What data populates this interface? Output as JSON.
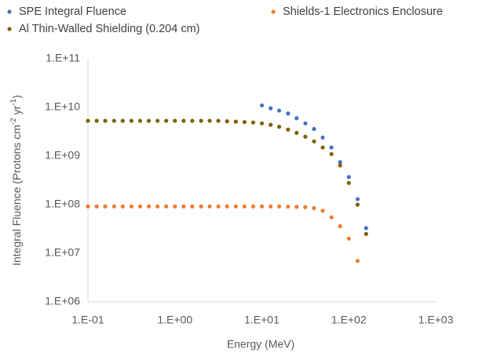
{
  "chart_data": {
    "type": "scatter",
    "x_label": "Energy (MeV)",
    "y_label": {
      "text": "Integral Fluence (Protons cm",
      "sup1": "-2",
      "mid": " yr",
      "sup2": "-1",
      "end": ")"
    },
    "log_x": true,
    "log_y": true,
    "grid": false,
    "legend": "top",
    "xlim": [
      0.1,
      1000
    ],
    "ylim": [
      1000000,
      100000000000
    ],
    "xticks": [
      {
        "value": 0.1,
        "label": "1.E-01"
      },
      {
        "value": 1,
        "label": "1.E+00"
      },
      {
        "value": 10,
        "label": "1.E+01"
      },
      {
        "value": 100,
        "label": "1.E+02"
      },
      {
        "value": 1000,
        "label": "1.E+03"
      }
    ],
    "yticks": [
      {
        "value": 1000000,
        "label": "1.E+06"
      },
      {
        "value": 10000000,
        "label": "1.E+07"
      },
      {
        "value": 100000000,
        "label": "1.E+08"
      },
      {
        "value": 1000000000,
        "label": "1.E+09"
      },
      {
        "value": 10000000000,
        "label": "1.E+10"
      },
      {
        "value": 100000000000,
        "label": "1.E+11"
      }
    ],
    "x": [
      0.1,
      0.126,
      0.158,
      0.2,
      0.251,
      0.316,
      0.398,
      0.501,
      0.631,
      0.794,
      1,
      1.26,
      1.58,
      2,
      2.51,
      3.16,
      3.98,
      5.01,
      6.31,
      7.94,
      10,
      12.6,
      15.8,
      20,
      25.1,
      31.6,
      39.8,
      50.1,
      63.1,
      79.4,
      100,
      126,
      158
    ],
    "series": [
      {
        "name": "SPE Integral Fluence",
        "color": "#4472c4",
        "values": [
          null,
          null,
          null,
          null,
          null,
          null,
          null,
          null,
          null,
          null,
          null,
          null,
          null,
          null,
          null,
          null,
          null,
          null,
          null,
          null,
          11000000000,
          9600000000,
          8600000000,
          7500000000,
          6000000000,
          4700000000,
          3600000000,
          2400000000,
          1500000000,
          750000000,
          370000000,
          130000000,
          33000000
        ]
      },
      {
        "name": "Shields-1 Electronics Enclosure",
        "color": "#ed7d31",
        "values": [
          92000000,
          92000000,
          92000000,
          92000000,
          92000000,
          92000000,
          92000000,
          92000000,
          92000000,
          92000000,
          92000000,
          92000000,
          92000000,
          92000000,
          92000000,
          92000000,
          92000000,
          92000000,
          92000000,
          92000000,
          92000000,
          92000000,
          92000000,
          91000000,
          90000000,
          89000000,
          85000000,
          75000000,
          55000000,
          36000000,
          20000000,
          7000000,
          null
        ]
      },
      {
        "name": "Al Thin-Walled Shielding (0.204 cm)",
        "color": "#7f6000",
        "values": [
          5300000000,
          5300000000,
          5300000000,
          5300000000,
          5300000000,
          5300000000,
          5300000000,
          5300000000,
          5300000000,
          5300000000,
          5300000000,
          5300000000,
          5300000000,
          5300000000,
          5300000000,
          5300000000,
          5200000000,
          5100000000,
          5000000000,
          4900000000,
          4700000000,
          4400000000,
          4000000000,
          3500000000,
          3000000000,
          2500000000,
          2000000000,
          1500000000,
          1100000000,
          640000000,
          280000000,
          100000000,
          25000000
        ]
      }
    ]
  }
}
